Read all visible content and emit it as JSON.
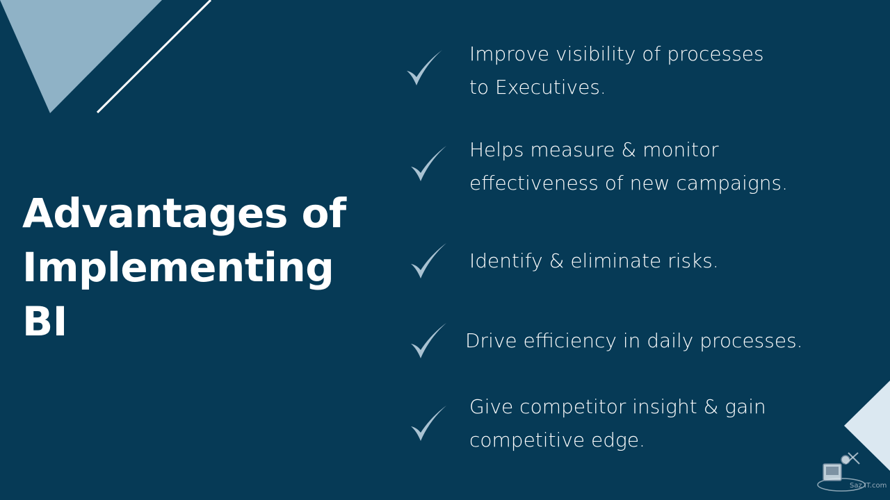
{
  "slide": {
    "title_lines": [
      "Advantages of",
      "Implementing",
      "BI"
    ],
    "bullets": [
      {
        "lines": [
          "Improve visibility of processes",
          "to Executives."
        ]
      },
      {
        "lines": [
          "Helps measure & monitor",
          "effectiveness of new campaigns."
        ]
      },
      {
        "lines": [
          "Identify & eliminate risks."
        ]
      },
      {
        "lines": [
          "Drive efficiency in daily processes."
        ]
      },
      {
        "lines": [
          "Give competitor insight & gain",
          "competitive edge."
        ]
      }
    ],
    "watermark_text": "Saz IT.com"
  },
  "colors": {
    "background": "#063a56",
    "accent_triangle": "#8fb2c6",
    "corner_triangle": "#dbe8f1",
    "checkmark": "#a9c2d2",
    "text": "#ffffff"
  },
  "icons": {
    "bullet": "check-icon",
    "watermark": "logo-icon"
  }
}
